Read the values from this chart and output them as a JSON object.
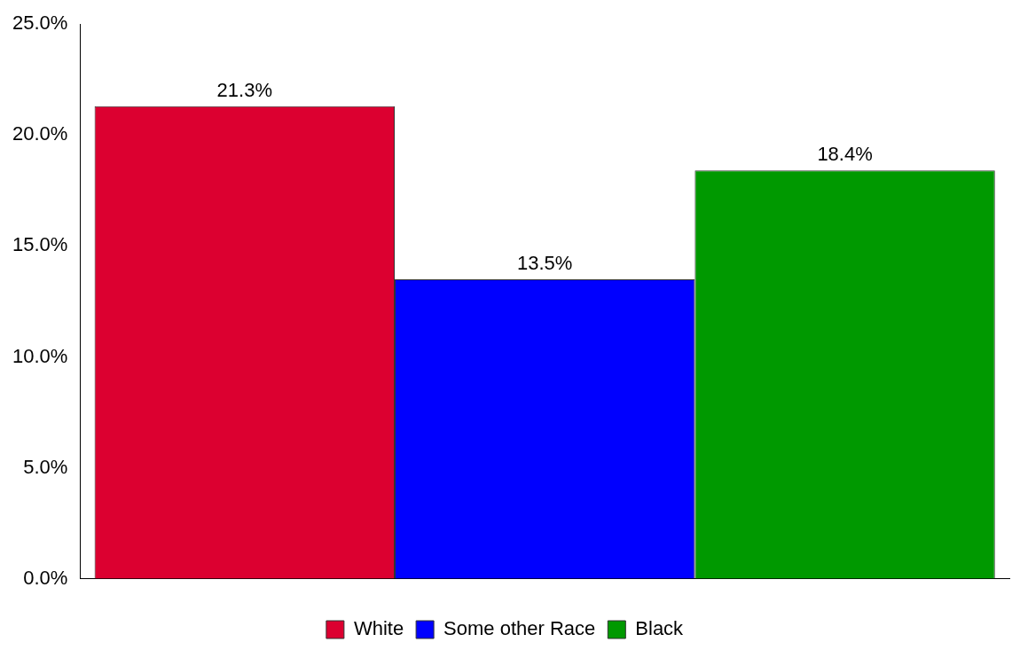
{
  "chart_data": {
    "type": "bar",
    "categories": [
      null
    ],
    "series": [
      {
        "name": "White",
        "color": "#dc0030",
        "values": [
          21.3
        ],
        "value_labels": [
          "21.3%"
        ]
      },
      {
        "name": "Some other Race",
        "color": "#0000ff",
        "values": [
          13.5
        ],
        "value_labels": [
          "13.5%"
        ]
      },
      {
        "name": "Black",
        "color": "#009900",
        "values": [
          18.4
        ],
        "value_labels": [
          "18.4%"
        ]
      }
    ],
    "ylim": [
      0,
      25
    ],
    "yticks": [
      {
        "value": 0,
        "label": "0.0%"
      },
      {
        "value": 5,
        "label": "5.0%"
      },
      {
        "value": 10,
        "label": "10.0%"
      },
      {
        "value": 15,
        "label": "15.0%"
      },
      {
        "value": 20,
        "label": "20.0%"
      },
      {
        "value": 25,
        "label": "25.0%"
      }
    ],
    "grid": false,
    "legend": "bottom"
  }
}
